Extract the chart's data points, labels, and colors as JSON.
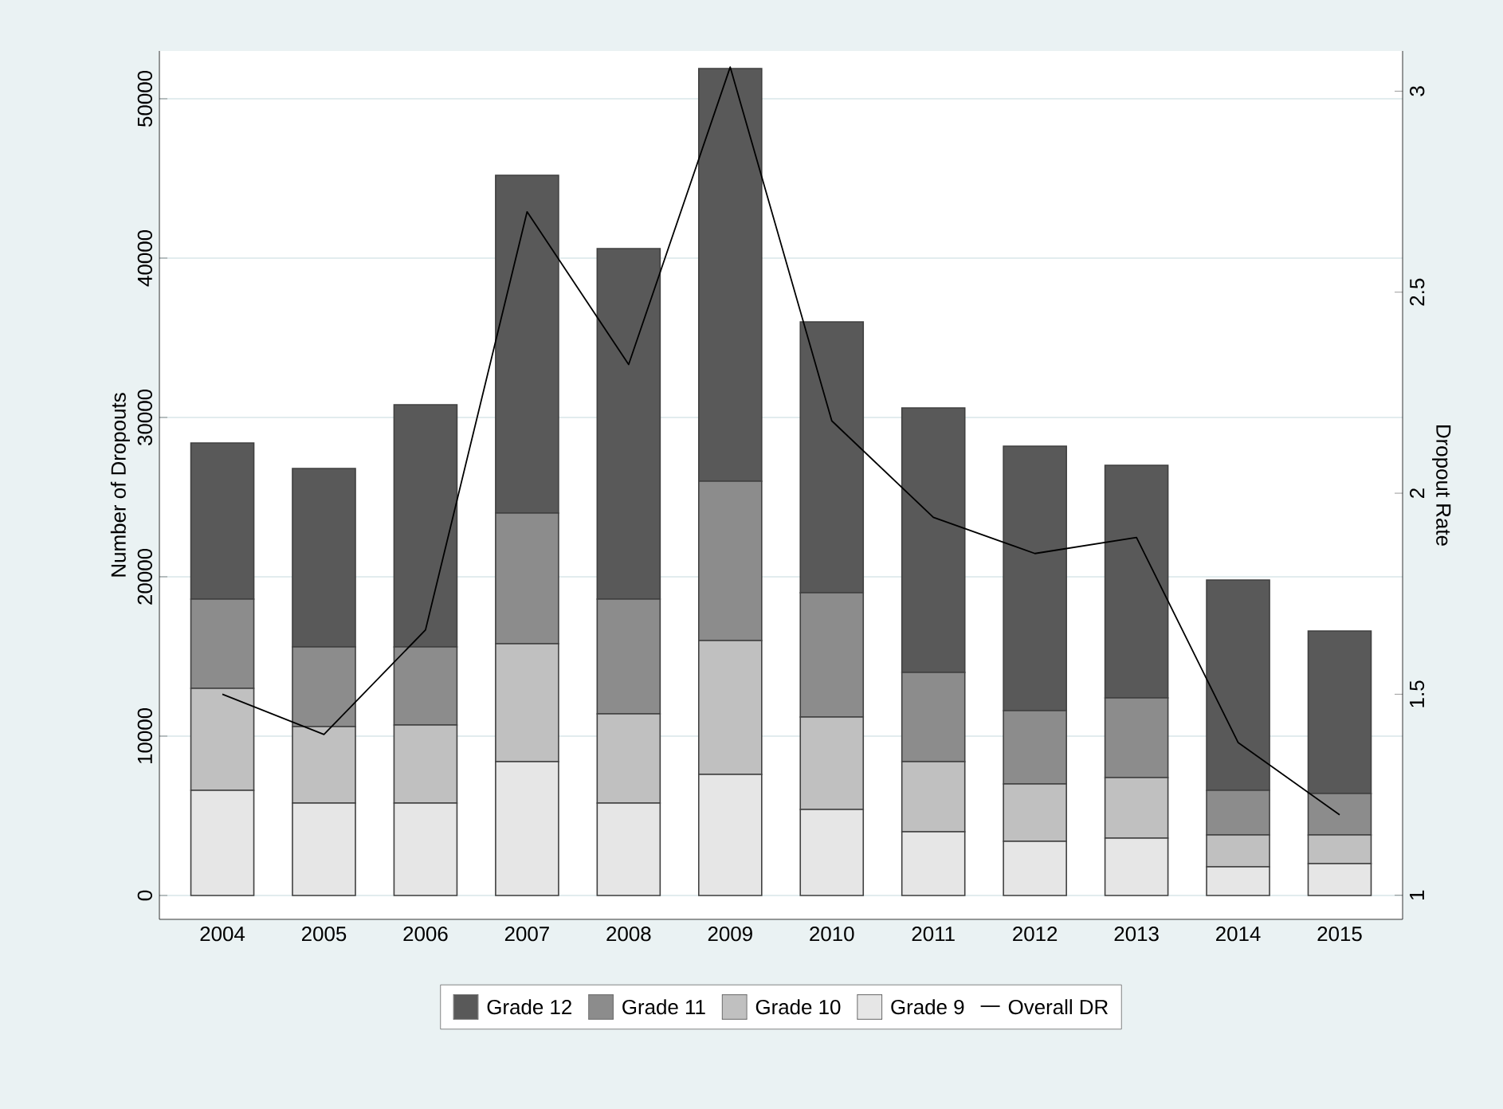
{
  "chart_data": {
    "type": "bar",
    "stacked": true,
    "categories": [
      "2004",
      "2005",
      "2006",
      "2007",
      "2008",
      "2009",
      "2010",
      "2011",
      "2012",
      "2013",
      "2014",
      "2015"
    ],
    "ylabel": "Number of Dropouts",
    "y2label": "Dropout Rate",
    "ylim": [
      -1500,
      53000
    ],
    "yticks": [
      0,
      10000,
      20000,
      30000,
      40000,
      50000
    ],
    "y2lim": [
      0.94,
      3.1
    ],
    "y2ticks": [
      1,
      1.5,
      2,
      2.5,
      3
    ],
    "grid": "y",
    "legend": "bottom",
    "series": [
      {
        "name": "Grade 9",
        "color": "#e6e6e6",
        "values": [
          6600,
          5800,
          5800,
          8400,
          5800,
          7600,
          5400,
          4000,
          3400,
          3600,
          1800,
          2000
        ]
      },
      {
        "name": "Grade 10",
        "color": "#c0c0c0",
        "values": [
          6400,
          4800,
          4900,
          7400,
          5600,
          8400,
          5800,
          4400,
          3600,
          3800,
          2000,
          1800
        ]
      },
      {
        "name": "Grade 11",
        "color": "#8c8c8c",
        "values": [
          5600,
          5000,
          4900,
          8200,
          7200,
          10000,
          7800,
          5600,
          4600,
          5000,
          2800,
          2600
        ]
      },
      {
        "name": "Grade 12",
        "color": "#595959",
        "values": [
          9800,
          11200,
          15200,
          21200,
          22000,
          25900,
          17000,
          16600,
          16600,
          14600,
          13200,
          10200
        ]
      },
      {
        "name": "Overall DR",
        "type": "line",
        "axis": "y2",
        "color": "#000000",
        "values": [
          1.5,
          1.4,
          1.66,
          2.7,
          2.32,
          3.06,
          2.18,
          1.94,
          1.85,
          1.89,
          1.38,
          1.2
        ]
      }
    ]
  }
}
